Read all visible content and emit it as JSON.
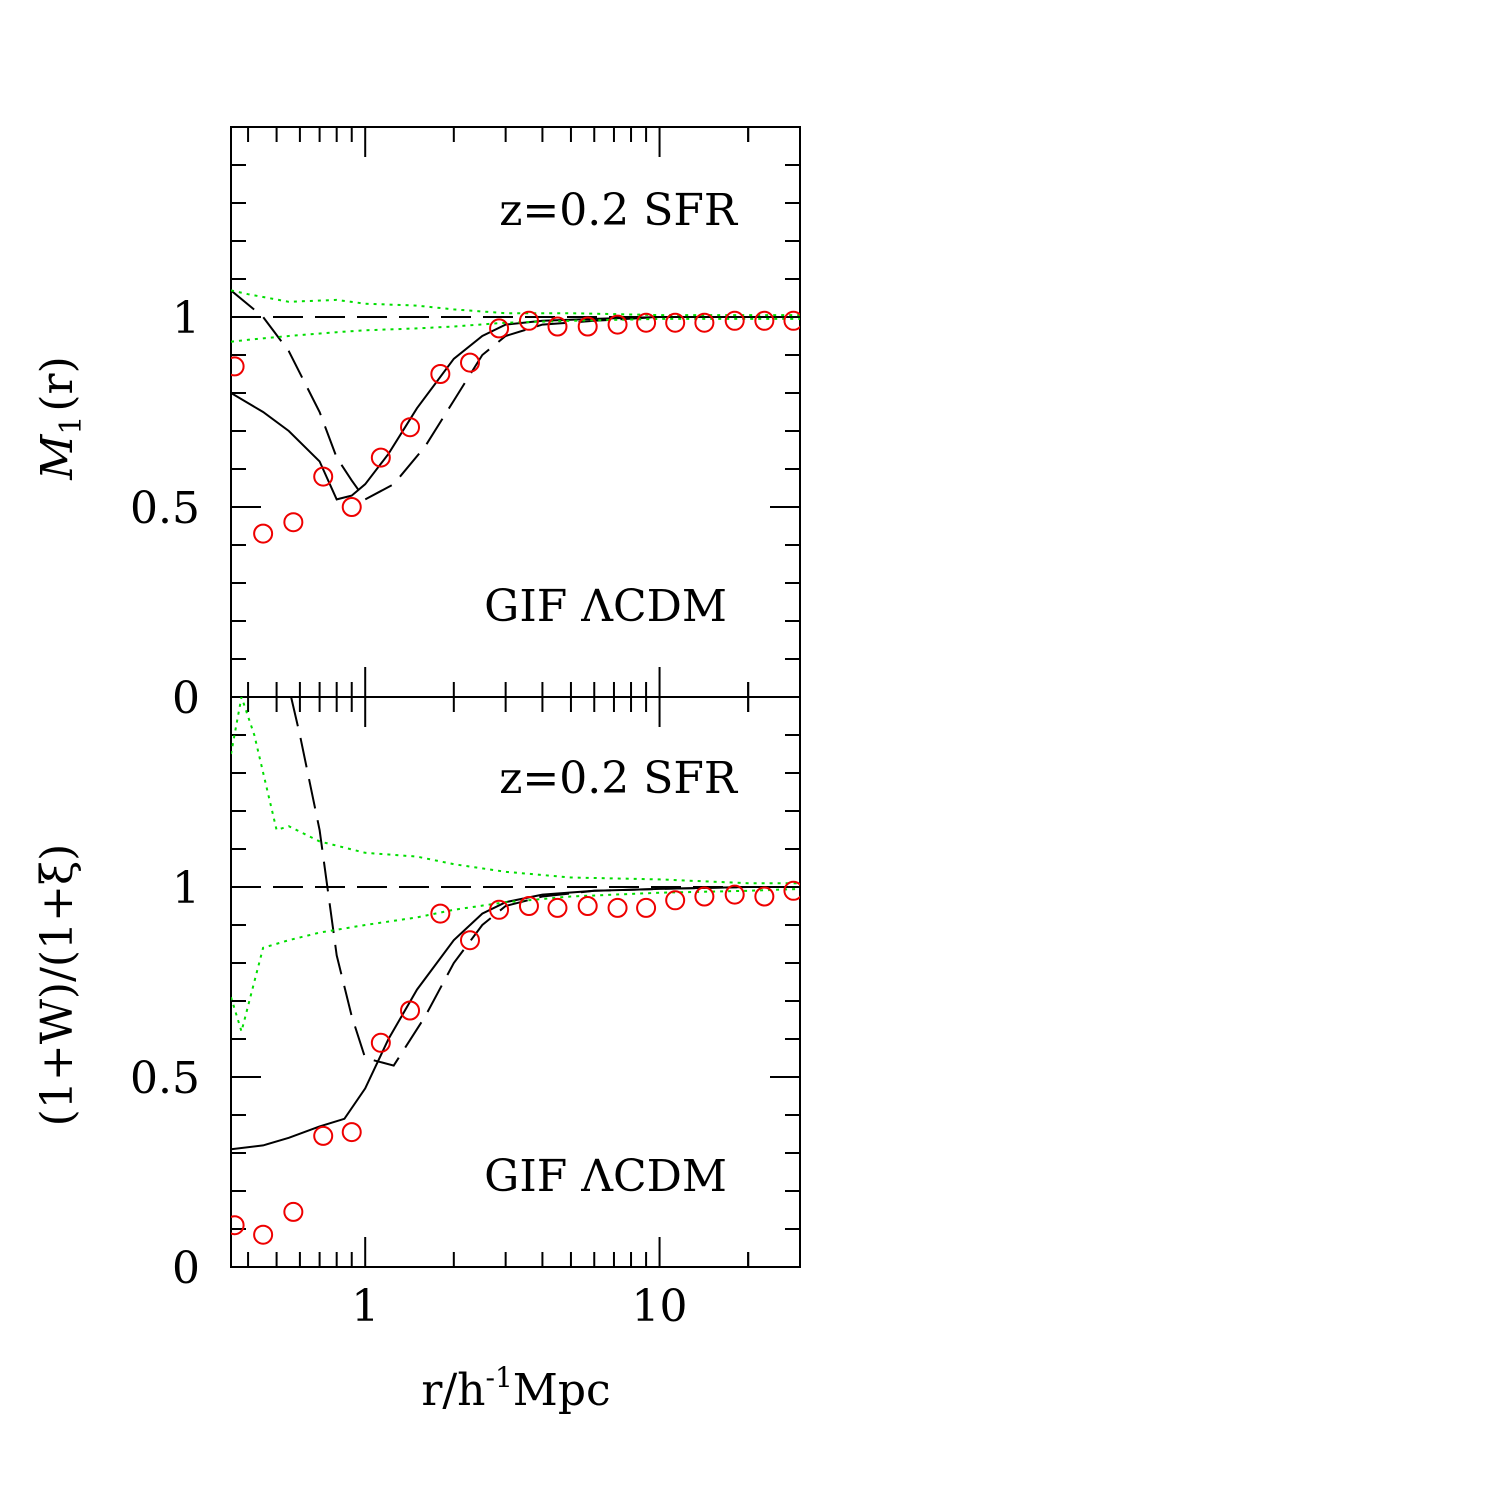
{
  "chart_data": [
    {
      "type": "line",
      "panel": "top",
      "ylabel_main": "M",
      "ylabel_sub": "1",
      "ylabel_rest": "(r)",
      "annotation_top": "z=0.2 SFR",
      "annotation_bottom": "GIF ΛCDM",
      "xscale": "log",
      "xlim": [
        0.35,
        30
      ],
      "ylim": [
        0,
        1.5
      ],
      "x_tick_labels": [],
      "y_tick_labels": [
        {
          "value": 0,
          "label": "0"
        },
        {
          "value": 0.5,
          "label": "0.5"
        },
        {
          "value": 1,
          "label": "1"
        }
      ],
      "series": [
        {
          "name": "reference",
          "style": "dashed",
          "color": "#000000",
          "x": [
            0.35,
            30
          ],
          "y": [
            1.0,
            1.0
          ]
        },
        {
          "name": "solid model",
          "style": "solid",
          "color": "#000000",
          "x": [
            0.35,
            0.45,
            0.55,
            0.7,
            0.8,
            0.9,
            1.0,
            1.2,
            1.5,
            2.0,
            2.5,
            3.0,
            4.0,
            6.0,
            10,
            20,
            30
          ],
          "y": [
            0.8,
            0.75,
            0.7,
            0.62,
            0.52,
            0.53,
            0.56,
            0.64,
            0.76,
            0.89,
            0.95,
            0.98,
            0.99,
            0.995,
            1.0,
            1.0,
            1.0
          ]
        },
        {
          "name": "dashed model",
          "style": "dashed",
          "color": "#000000",
          "x": [
            0.35,
            0.45,
            0.55,
            0.7,
            0.8,
            0.9,
            1.0,
            1.25,
            1.6,
            2.0,
            2.5,
            3.0,
            4.0,
            6.0,
            10,
            20,
            30
          ],
          "y": [
            1.07,
            1.0,
            0.91,
            0.75,
            0.63,
            0.57,
            0.52,
            0.56,
            0.66,
            0.78,
            0.9,
            0.95,
            0.98,
            0.99,
            1.0,
            1.0,
            1.0
          ]
        },
        {
          "name": "upper envelope",
          "style": "dotted",
          "color": "#00dd00",
          "x": [
            0.35,
            0.4,
            0.55,
            0.8,
            1.0,
            1.5,
            2.0,
            3.0,
            5.0,
            10,
            20,
            30
          ],
          "y": [
            1.07,
            1.06,
            1.04,
            1.045,
            1.035,
            1.03,
            1.02,
            1.01,
            1.01,
            1.005,
            1.005,
            1.005
          ]
        },
        {
          "name": "lower envelope",
          "style": "dotted",
          "color": "#00dd00",
          "x": [
            0.35,
            0.4,
            0.55,
            0.8,
            1.0,
            1.5,
            2.0,
            3.0,
            5.0,
            10,
            20,
            30
          ],
          "y": [
            0.935,
            0.94,
            0.95,
            0.96,
            0.965,
            0.97,
            0.975,
            0.985,
            0.99,
            0.995,
            0.995,
            0.995
          ]
        },
        {
          "name": "measurements",
          "style": "circles",
          "color": "#ee0000",
          "x": [
            0.36,
            0.45,
            0.57,
            0.72,
            0.9,
            1.13,
            1.42,
            1.8,
            2.27,
            2.85,
            3.6,
            4.5,
            5.7,
            7.2,
            9.0,
            11.3,
            14.2,
            18.0,
            22.7,
            28.5
          ],
          "y": [
            0.87,
            0.43,
            0.46,
            0.58,
            0.5,
            0.63,
            0.71,
            0.85,
            0.88,
            0.97,
            0.99,
            0.975,
            0.975,
            0.98,
            0.985,
            0.985,
            0.985,
            0.99,
            0.99,
            0.99
          ]
        }
      ]
    },
    {
      "type": "line",
      "panel": "bottom",
      "ylabel": "(1+W)/(1+ξ)",
      "annotation_top": "z=0.2 SFR",
      "annotation_bottom": "GIF ΛCDM",
      "xlabel_main": "r/h",
      "xlabel_sup": "-1",
      "xlabel_rest": "Mpc",
      "xscale": "log",
      "xlim": [
        0.35,
        30
      ],
      "ylim": [
        0,
        1.5
      ],
      "x_tick_labels": [
        {
          "value": 1,
          "label": "1"
        },
        {
          "value": 10,
          "label": "10"
        }
      ],
      "y_tick_labels": [
        {
          "value": 0,
          "label": "0"
        },
        {
          "value": 0.5,
          "label": "0.5"
        },
        {
          "value": 1,
          "label": "1"
        }
      ],
      "series": [
        {
          "name": "reference",
          "style": "dashed",
          "color": "#000000",
          "x": [
            0.35,
            30
          ],
          "y": [
            1.0,
            1.0
          ]
        },
        {
          "name": "solid model",
          "style": "solid",
          "color": "#000000",
          "x": [
            0.35,
            0.45,
            0.55,
            0.7,
            0.85,
            1.0,
            1.2,
            1.5,
            2.0,
            2.5,
            3.0,
            4.0,
            6.0,
            10,
            20,
            30
          ],
          "y": [
            0.31,
            0.32,
            0.34,
            0.37,
            0.39,
            0.47,
            0.6,
            0.73,
            0.86,
            0.93,
            0.96,
            0.98,
            0.99,
            0.995,
            1.0,
            1.0
          ]
        },
        {
          "name": "dashed model",
          "style": "dashed",
          "color": "#000000",
          "x": [
            0.56,
            0.6,
            0.7,
            0.8,
            0.9,
            1.0,
            1.25,
            1.6,
            2.0,
            2.5,
            3.0,
            4.0,
            6.0,
            10,
            20,
            30
          ],
          "y": [
            1.5,
            1.4,
            1.15,
            0.82,
            0.66,
            0.55,
            0.53,
            0.66,
            0.8,
            0.9,
            0.95,
            0.975,
            0.99,
            0.995,
            1.0,
            1.0
          ]
        },
        {
          "name": "upper envelope",
          "style": "dotted",
          "color": "#00dd00",
          "x": [
            0.35,
            0.38,
            0.42,
            0.5,
            0.55,
            0.7,
            1.0,
            1.5,
            2.0,
            3.0,
            5.0,
            10,
            20,
            30
          ],
          "y": [
            1.35,
            1.5,
            1.4,
            1.15,
            1.16,
            1.12,
            1.09,
            1.08,
            1.06,
            1.04,
            1.025,
            1.02,
            1.01,
            1.01
          ]
        },
        {
          "name": "lower envelope",
          "style": "dotted",
          "color": "#00dd00",
          "x": [
            0.35,
            0.38,
            0.45,
            0.55,
            0.7,
            1.0,
            1.5,
            2.0,
            3.0,
            5.0,
            10,
            20,
            30
          ],
          "y": [
            0.71,
            0.62,
            0.84,
            0.86,
            0.88,
            0.9,
            0.92,
            0.94,
            0.96,
            0.975,
            0.985,
            0.99,
            0.995
          ]
        },
        {
          "name": "measurements",
          "style": "circles",
          "color": "#ee0000",
          "x": [
            0.36,
            0.45,
            0.57,
            0.72,
            0.9,
            1.13,
            1.42,
            1.8,
            2.27,
            2.85,
            3.6,
            4.5,
            5.7,
            7.2,
            9.0,
            11.3,
            14.2,
            18.0,
            22.7,
            28.5
          ],
          "y": [
            0.11,
            0.085,
            0.145,
            0.345,
            0.355,
            0.59,
            0.675,
            0.93,
            0.86,
            0.94,
            0.95,
            0.945,
            0.95,
            0.945,
            0.945,
            0.965,
            0.975,
            0.98,
            0.975,
            0.99
          ]
        }
      ]
    }
  ]
}
